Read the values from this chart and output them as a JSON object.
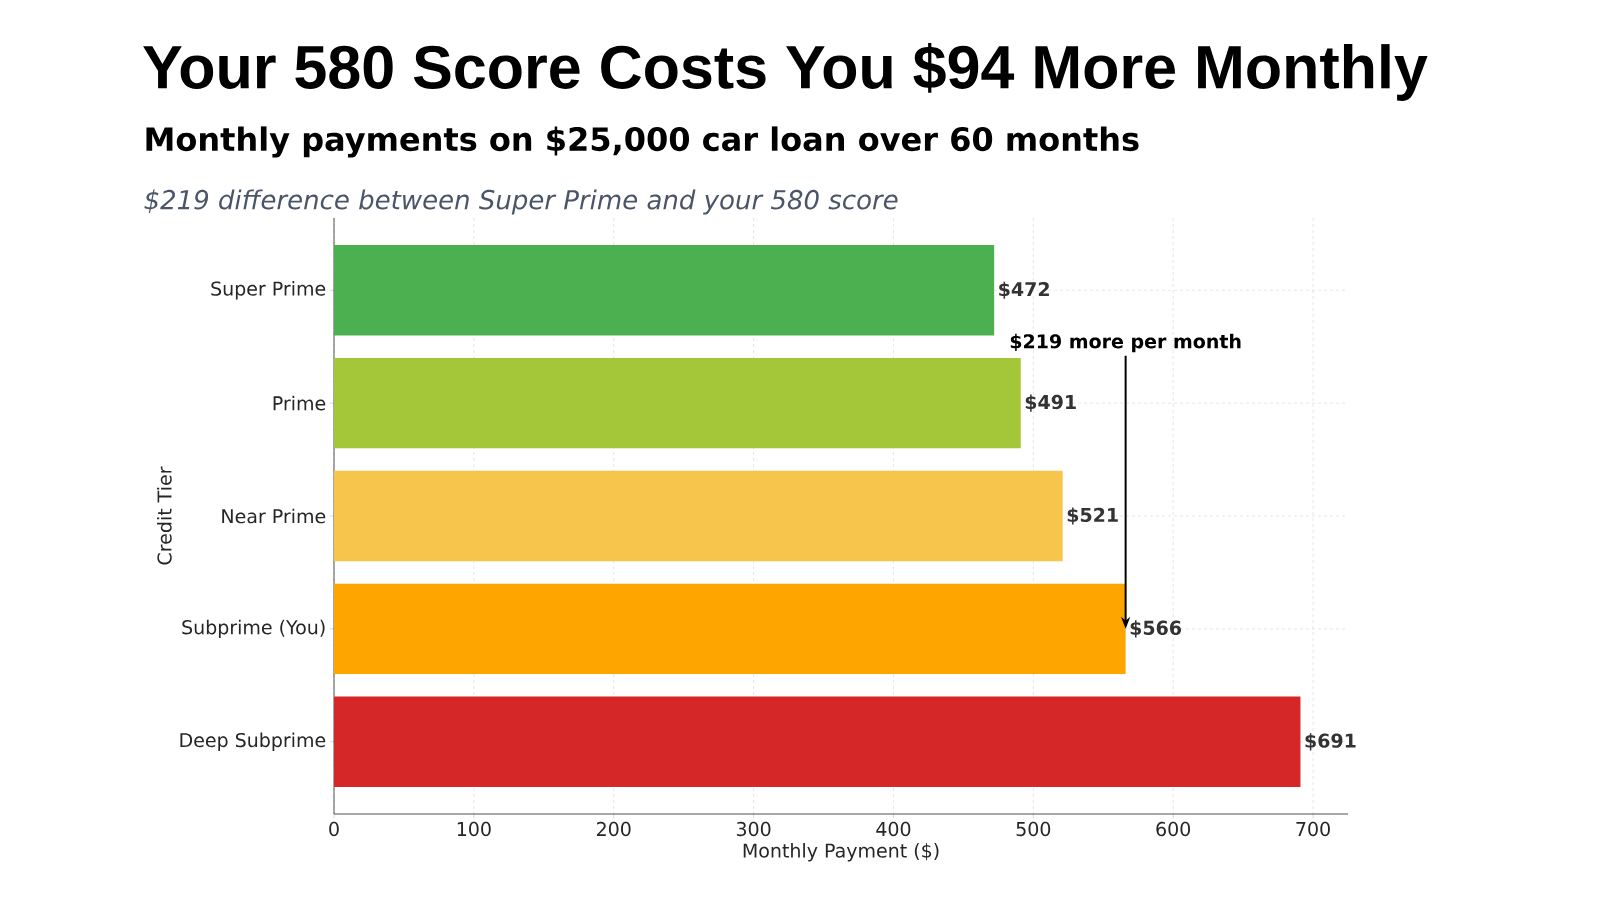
{
  "chart_data": {
    "type": "bar",
    "orientation": "horizontal",
    "title": "Your 580 Score Costs You $94 More Monthly",
    "subtitle": "Monthly payments on $25,000 car loan over 60 months",
    "categories": [
      "Super Prime",
      "Prime",
      "Near Prime",
      "Subprime (You)",
      "Deep Subprime"
    ],
    "values": [
      472,
      491,
      521,
      566,
      691
    ],
    "colors": [
      "#4caf50",
      "#a4c639",
      "#f7c54c",
      "#ffa500",
      "#d62728"
    ],
    "value_labels": [
      "$472",
      "$491",
      "$521",
      "$566",
      "$691"
    ],
    "xlabel": "Monthly Payment ($)",
    "ylabel": "Credit Tier",
    "xlim": [
      0,
      725
    ],
    "xticks": [
      0,
      100,
      200,
      300,
      400,
      500,
      600,
      700
    ],
    "grid": true,
    "annotations": [
      "$219 difference between Super Prime and your 580 score",
      {
        "text": "$219 more per month",
        "x": 566,
        "y": "Subprime (You)"
      }
    ]
  }
}
